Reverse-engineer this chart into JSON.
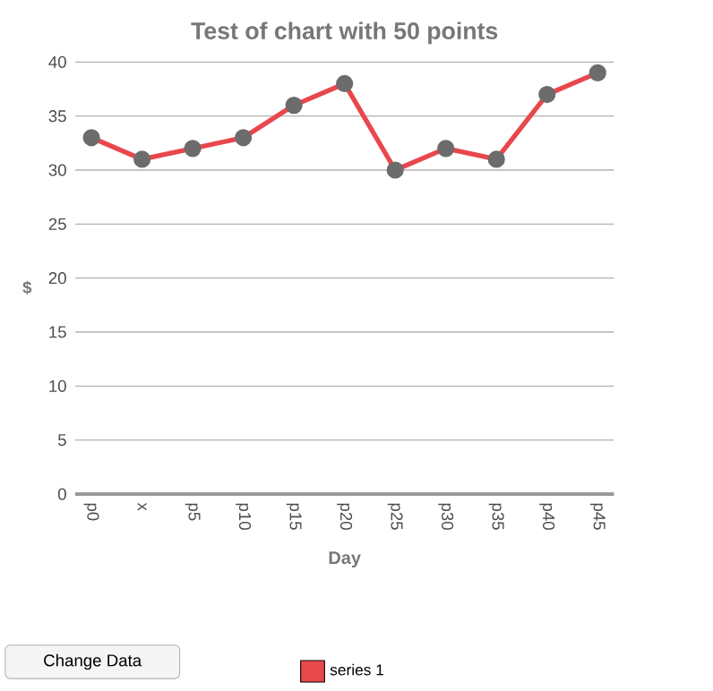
{
  "chart_data": {
    "type": "line",
    "title": "Test of chart with 50 points",
    "xlabel": "Day",
    "ylabel": "$",
    "categories": [
      "p0",
      "x",
      "p5",
      "p10",
      "p15",
      "p20",
      "p25",
      "p30",
      "p35",
      "p40",
      "p45"
    ],
    "series": [
      {
        "name": "series 1",
        "color": "#e8474c",
        "values": [
          33,
          31,
          32,
          33,
          36,
          38,
          30,
          32,
          31,
          37,
          39
        ]
      }
    ],
    "ylim": [
      0,
      40
    ],
    "yticks": [
      0,
      5,
      10,
      15,
      20,
      25,
      30,
      35,
      40
    ],
    "grid": "y",
    "legend": "bottom",
    "marker": "circle",
    "annotations": [
      "Change Data"
    ]
  }
}
